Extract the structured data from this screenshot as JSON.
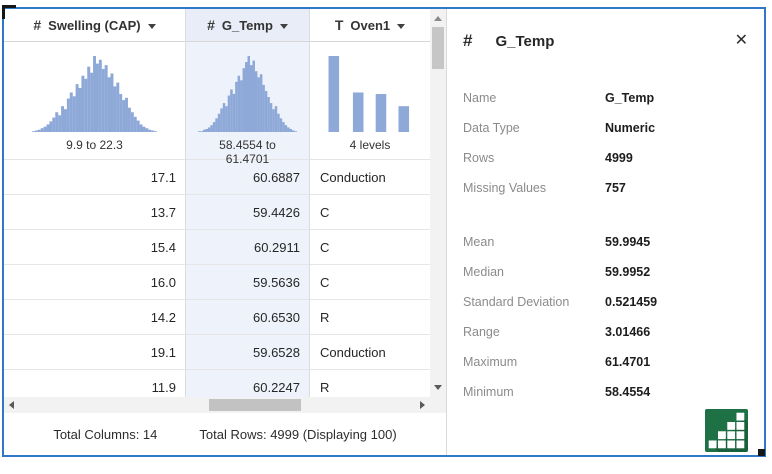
{
  "window": {
    "border_color": "#2f78c8",
    "accent_histogram_color": "#8ea9d8",
    "selected_column_tint": "#eef2fb"
  },
  "table": {
    "columns": [
      {
        "id": "swelling-cap",
        "type": "numeric",
        "type_icon": "#",
        "label": "Swelling (CAP)",
        "summary": "9.9 to 22.3",
        "selected": false,
        "align": "right",
        "histogram": [
          1,
          2,
          3,
          5,
          7,
          10,
          14,
          19,
          26,
          22,
          34,
          30,
          44,
          52,
          47,
          63,
          58,
          74,
          70,
          86,
          78,
          100,
          90,
          95,
          83,
          88,
          72,
          77,
          60,
          65,
          50,
          42,
          45,
          32,
          26,
          20,
          15,
          10,
          7,
          5,
          3,
          2,
          1
        ]
      },
      {
        "id": "g-temp",
        "type": "numeric",
        "type_icon": "#",
        "label": "G_Temp",
        "summary": "58.4554 to 61.4701",
        "selected": true,
        "align": "right",
        "histogram": [
          1,
          1,
          3,
          4,
          6,
          9,
          13,
          18,
          24,
          31,
          38,
          34,
          48,
          56,
          50,
          66,
          74,
          68,
          84,
          92,
          100,
          88,
          94,
          80,
          72,
          76,
          62,
          54,
          46,
          38,
          30,
          34,
          24,
          18,
          13,
          9,
          6,
          4,
          2,
          1
        ]
      },
      {
        "id": "oven1",
        "type": "character",
        "type_icon": "T",
        "label": "Oven1",
        "summary": "4 levels",
        "selected": false,
        "align": "left",
        "bars": [
          100,
          52,
          50,
          34
        ]
      }
    ],
    "rows": [
      [
        "17.1",
        "60.6887",
        "Conduction"
      ],
      [
        "13.7",
        "59.4426",
        "C"
      ],
      [
        "15.4",
        "60.2911",
        "C"
      ],
      [
        "16.0",
        "59.5636",
        "C"
      ],
      [
        "14.2",
        "60.6530",
        "R"
      ],
      [
        "19.1",
        "59.6528",
        "Conduction"
      ],
      [
        "11.9",
        "60.2247",
        "R"
      ]
    ],
    "footer": {
      "total_columns": "Total Columns: 14",
      "total_rows": "Total Rows: 4999 (Displaying 100)"
    }
  },
  "panel": {
    "type_icon": "#",
    "title": "G_Temp",
    "close_glyph": "✕",
    "fields": [
      {
        "label": "Name",
        "value": "G_Temp"
      },
      {
        "label": "Data Type",
        "value": "Numeric"
      },
      {
        "label": "Rows",
        "value": "4999"
      },
      {
        "label": "Missing Values",
        "value": "757"
      },
      {
        "spacer": true
      },
      {
        "label": "Mean",
        "value": "59.9945"
      },
      {
        "label": "Median",
        "value": "59.9952"
      },
      {
        "label": "Standard Deviation",
        "value": "0.521459"
      },
      {
        "label": "Range",
        "value": "3.01466"
      },
      {
        "label": "Maximum",
        "value": "61.4701"
      },
      {
        "label": "Minimum",
        "value": "58.4554"
      }
    ],
    "chart_button_color": "#1e7145"
  }
}
